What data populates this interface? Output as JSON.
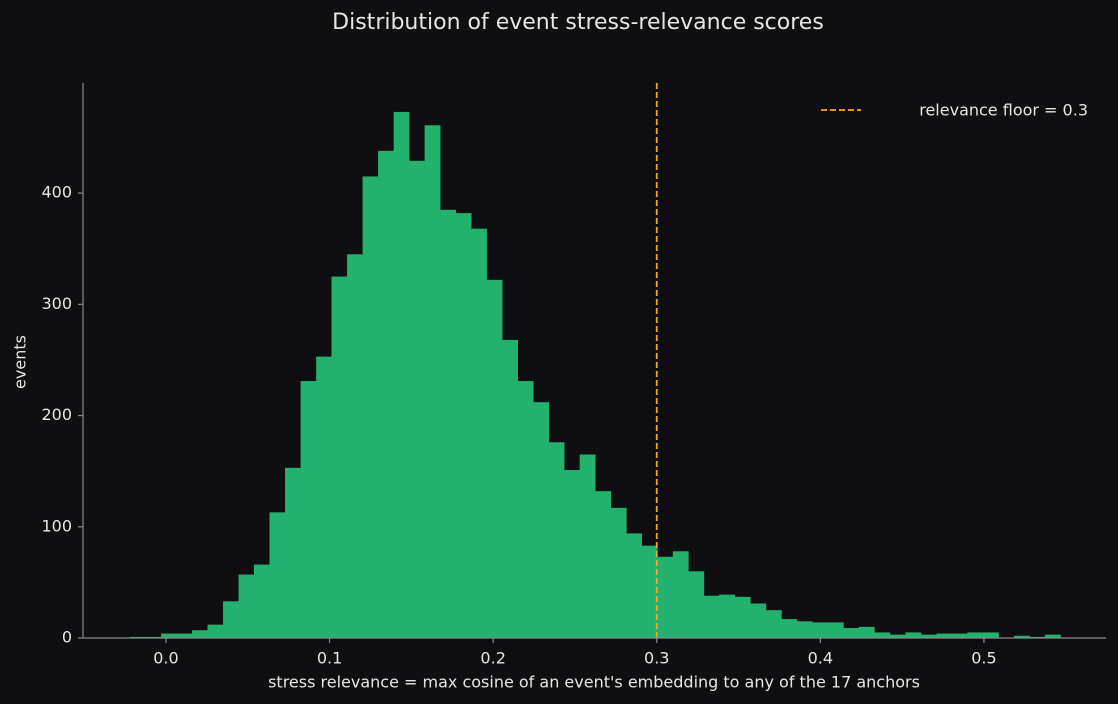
{
  "chart_data": {
    "type": "histogram",
    "title": "Distribution of event stress-relevance scores",
    "xlabel": "stress relevance = max cosine of an event's embedding to any of the 17 anchors",
    "ylabel": "events",
    "bins": [
      -0.022,
      -0.0125,
      -0.003,
      0.0064,
      0.0159,
      0.0254,
      0.0349,
      0.0444,
      0.0538,
      0.0633,
      0.0728,
      0.0823,
      0.0918,
      0.1012,
      0.1107,
      0.1202,
      0.1297,
      0.1392,
      0.1486,
      0.1581,
      0.1676,
      0.1771,
      0.1866,
      0.196,
      0.2055,
      0.215,
      0.2245,
      0.234,
      0.2434,
      0.2529,
      0.2624,
      0.2719,
      0.2814,
      0.2908,
      0.3003,
      0.3098,
      0.3193,
      0.3288,
      0.3382,
      0.3477,
      0.3572,
      0.3667,
      0.3762,
      0.3856,
      0.3951,
      0.4046,
      0.4141,
      0.4236,
      0.433,
      0.4425,
      0.452,
      0.4615,
      0.471,
      0.4804,
      0.4899,
      0.4994,
      0.5089,
      0.5184,
      0.5278,
      0.5373,
      0.5468
    ],
    "counts": [
      1,
      1,
      4,
      4,
      7,
      12,
      33,
      57,
      66,
      113,
      153,
      231,
      253,
      325,
      345,
      415,
      438,
      473,
      429,
      461,
      385,
      382,
      368,
      322,
      268,
      231,
      212,
      176,
      151,
      165,
      132,
      117,
      94,
      83,
      73,
      78,
      60,
      38,
      39,
      37,
      31,
      25,
      17,
      15,
      14,
      14,
      9,
      10,
      5,
      3,
      5,
      3,
      4,
      4,
      5,
      5,
      0,
      2,
      1,
      3
    ],
    "color": "#22b26d",
    "xlim": [
      -0.0507,
      0.5746
    ],
    "ylim": [
      0,
      499
    ],
    "xticks": [
      {
        "value": 0,
        "label": "0.0"
      },
      0.1,
      0.2,
      0.3,
      0.4,
      0.5
    ],
    "yticks": [
      0,
      100,
      200,
      300,
      400
    ],
    "vline": {
      "value": 0.3,
      "label": "relevance floor = 0.3",
      "color": "#f5a623"
    },
    "legend": "upper right"
  }
}
